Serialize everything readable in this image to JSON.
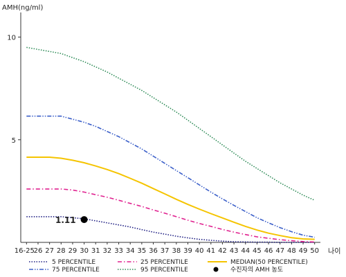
{
  "chart_data": {
    "type": "line",
    "ylabel": "AMH(ng/ml)",
    "xlabel": "나이",
    "x_ticks": [
      "16-25",
      "26",
      "27",
      "28",
      "29",
      "30",
      "31",
      "32",
      "33",
      "34",
      "35",
      "36",
      "37",
      "38",
      "39",
      "40",
      "41",
      "42",
      "43",
      "44",
      "45",
      "46",
      "47",
      "48",
      "49",
      "50"
    ],
    "y_ticks": [
      5,
      10
    ],
    "ylim": [
      0,
      11.2
    ],
    "grid": false,
    "legend_position": "bottom",
    "series": [
      {
        "name": "5 PERCENTILE",
        "color": "#1a1a80",
        "style": "dotted",
        "values": [
          1.25,
          1.25,
          1.25,
          1.25,
          1.2,
          1.15,
          1.05,
          0.95,
          0.85,
          0.75,
          0.62,
          0.5,
          0.4,
          0.3,
          0.22,
          0.15,
          0.1,
          0.06,
          0.03,
          0.02,
          0.01,
          0.01,
          0.0,
          0.0,
          0.0,
          0.0
        ]
      },
      {
        "name": "25 PERCENTILE",
        "color": "#e0208f",
        "style": "dashdot",
        "values": [
          2.6,
          2.6,
          2.6,
          2.6,
          2.55,
          2.45,
          2.32,
          2.2,
          2.05,
          1.9,
          1.75,
          1.58,
          1.42,
          1.25,
          1.08,
          0.92,
          0.78,
          0.63,
          0.5,
          0.38,
          0.27,
          0.2,
          0.13,
          0.08,
          0.04,
          0.02
        ]
      },
      {
        "name": "MEDIAN(50 PERCENTILE)",
        "color": "#f5c400",
        "style": "solid",
        "values": [
          4.15,
          4.15,
          4.15,
          4.1,
          4.0,
          3.88,
          3.72,
          3.55,
          3.35,
          3.12,
          2.88,
          2.62,
          2.36,
          2.1,
          1.85,
          1.62,
          1.4,
          1.19,
          0.98,
          0.78,
          0.6,
          0.45,
          0.33,
          0.23,
          0.17,
          0.15
        ]
      },
      {
        "name": "75 PERCENTILE",
        "color": "#3b5fc9",
        "style": "dashdotdot",
        "values": [
          6.15,
          6.15,
          6.15,
          6.15,
          6.0,
          5.85,
          5.65,
          5.4,
          5.15,
          4.85,
          4.55,
          4.2,
          3.85,
          3.5,
          3.15,
          2.8,
          2.45,
          2.12,
          1.8,
          1.5,
          1.2,
          0.95,
          0.72,
          0.52,
          0.35,
          0.25
        ]
      },
      {
        "name": "95 PERCENTILE",
        "color": "#2e8b57",
        "style": "dotted",
        "values": [
          9.5,
          9.4,
          9.3,
          9.2,
          9.0,
          8.8,
          8.55,
          8.3,
          8.0,
          7.7,
          7.4,
          7.05,
          6.7,
          6.35,
          5.95,
          5.55,
          5.15,
          4.75,
          4.35,
          3.95,
          3.6,
          3.25,
          2.9,
          2.6,
          2.3,
          2.05
        ]
      }
    ],
    "marker": {
      "legend_label": "수진자의 AMH 농도",
      "x": "30",
      "y": 1.11,
      "label": "1.11",
      "color": "#000000"
    }
  }
}
